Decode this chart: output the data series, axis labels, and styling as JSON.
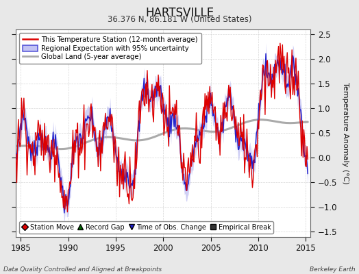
{
  "title": "HARTSVILLE",
  "subtitle": "36.376 N, 86.181 W (United States)",
  "footer_left": "Data Quality Controlled and Aligned at Breakpoints",
  "footer_right": "Berkeley Earth",
  "ylabel": "Temperature Anomaly (°C)",
  "xlim": [
    1984.5,
    2015.5
  ],
  "ylim": [
    -1.6,
    2.6
  ],
  "yticks_left": [],
  "yticks_right": [
    -1.5,
    -1.0,
    -0.5,
    0.0,
    0.5,
    1.0,
    1.5,
    2.0,
    2.5
  ],
  "xticks": [
    1985,
    1990,
    1995,
    2000,
    2005,
    2010,
    2015
  ],
  "background_color": "#e8e8e8",
  "plot_bg_color": "#ffffff",
  "station_color": "#dd0000",
  "regional_color": "#2222cc",
  "regional_band_color": "#aaaaee",
  "global_color": "#aaaaaa",
  "legend_line_color": "#dd0000",
  "legend_band_facecolor": "#aaaaee",
  "legend_band_edgecolor": "#2222cc",
  "legend_global_color": "#aaaaaa",
  "marker_station_color": "#dd0000",
  "marker_gap_color": "#006600",
  "marker_obs_color": "#2222cc",
  "marker_break_color": "#333333"
}
